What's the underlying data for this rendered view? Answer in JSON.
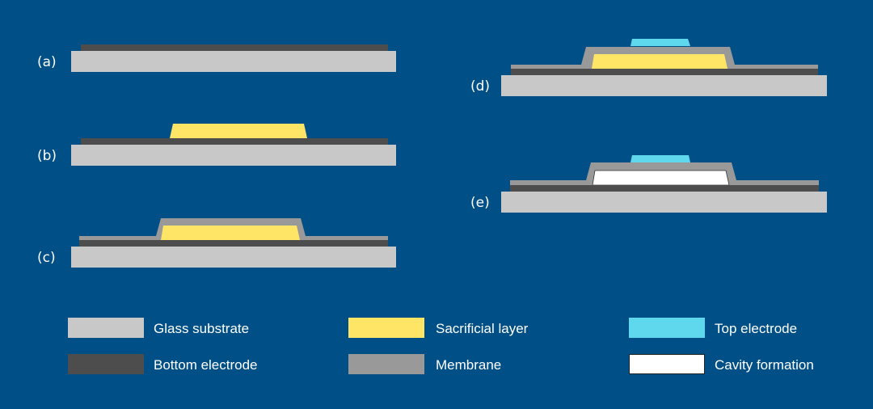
{
  "colors": {
    "background": "#004f86",
    "glass_substrate": "#c8c8c8",
    "bottom_electrode": "#4d4d4d",
    "membrane": "#999999",
    "sacrificial_layer": "#ffe566",
    "top_electrode": "#5fd8ee",
    "cavity": "#ffffff"
  },
  "steps": [
    {
      "label": "(a)"
    },
    {
      "label": "(b)"
    },
    {
      "label": "(c)"
    },
    {
      "label": "(d)"
    },
    {
      "label": "(e)"
    }
  ],
  "legend": [
    {
      "label": "Glass substrate"
    },
    {
      "label": "Sacrificial layer"
    },
    {
      "label": "Top electrode"
    },
    {
      "label": "Bottom electrode"
    },
    {
      "label": "Membrane"
    },
    {
      "label": "Cavity formation"
    }
  ]
}
